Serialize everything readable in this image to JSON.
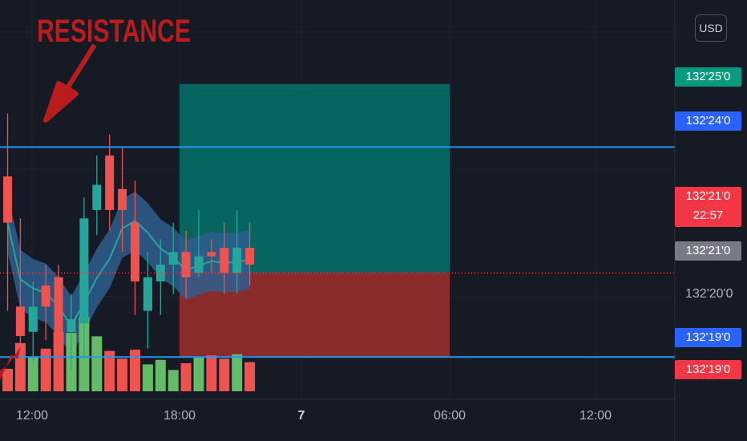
{
  "currency_label": "USD",
  "annotation": {
    "text": "RESISTANCE",
    "color": "#b91c1c"
  },
  "price_scale_ticks": [
    "132'20'0"
  ],
  "price_tags": [
    {
      "text": "132'25'0",
      "bg": "#089981"
    },
    {
      "text": "132'24'0",
      "bg": "#2962ff"
    },
    {
      "text": "132'21'0",
      "bg": "#f23645"
    },
    {
      "text": "22:57",
      "bg": "#f23645"
    },
    {
      "text": "132'21'0",
      "bg": "#787b86"
    },
    {
      "text": "132'19'0",
      "bg": "#2962ff"
    },
    {
      "text": "132'19'0",
      "bg": "#f23645"
    }
  ],
  "time_axis": [
    {
      "label": "12:00",
      "bold": false
    },
    {
      "label": "18:00",
      "bold": false
    },
    {
      "label": "7",
      "bold": true
    },
    {
      "label": "06:00",
      "bold": false
    },
    {
      "label": "12:00",
      "bold": false
    }
  ],
  "colors": {
    "up": "#26a69a",
    "down": "#ef5350",
    "vol_up": "#66bb6a",
    "vol_down": "#ef5350",
    "hline": "#2196f3",
    "band": "#2e5e8e",
    "band_line": "#26a69a",
    "target": "#06665f",
    "stop": "#8a2c2c"
  },
  "chart_data": {
    "type": "candlestick",
    "y_unit": "price (ticks, 32nds)",
    "ylim": [
      132.17,
      132.275
    ],
    "resistance_level": 132.24,
    "support_level": 132.19,
    "position": {
      "entry": 132.21,
      "target": 132.255,
      "stop": 132.19
    },
    "last_price": 132.21,
    "volume_max": 100,
    "candles": [
      {
        "o": 132.233,
        "h": 132.248,
        "l": 132.201,
        "c": 132.222,
        "v": 20
      },
      {
        "o": 132.202,
        "h": 132.223,
        "l": 132.184,
        "c": 132.195,
        "v": 43
      },
      {
        "o": 132.196,
        "h": 132.208,
        "l": 132.189,
        "c": 132.202,
        "v": 31
      },
      {
        "o": 132.207,
        "h": 132.212,
        "l": 132.194,
        "c": 132.202,
        "v": 38
      },
      {
        "o": 132.209,
        "h": 132.212,
        "l": 132.185,
        "c": 132.189,
        "v": 53
      },
      {
        "o": 132.196,
        "h": 132.205,
        "l": 132.187,
        "c": 132.199,
        "v": 52
      },
      {
        "o": 132.198,
        "h": 132.228,
        "l": 132.19,
        "c": 132.223,
        "v": 66
      },
      {
        "o": 132.225,
        "h": 132.238,
        "l": 132.219,
        "c": 132.231,
        "v": 49
      },
      {
        "o": 132.238,
        "h": 132.243,
        "l": 132.22,
        "c": 132.225,
        "v": 36
      },
      {
        "o": 132.23,
        "h": 132.24,
        "l": 132.215,
        "c": 132.225,
        "v": 29
      },
      {
        "o": 132.222,
        "h": 132.232,
        "l": 132.2,
        "c": 132.208,
        "v": 37
      },
      {
        "o": 132.201,
        "h": 132.215,
        "l": 132.192,
        "c": 132.209,
        "v": 24
      },
      {
        "o": 132.208,
        "h": 132.218,
        "l": 132.2,
        "c": 132.212,
        "v": 28
      },
      {
        "o": 132.212,
        "h": 132.222,
        "l": 132.205,
        "c": 132.215,
        "v": 19
      },
      {
        "o": 132.215,
        "h": 132.22,
        "l": 132.204,
        "c": 132.209,
        "v": 25
      },
      {
        "o": 132.21,
        "h": 132.225,
        "l": 132.209,
        "c": 132.214,
        "v": 30
      },
      {
        "o": 132.215,
        "h": 132.218,
        "l": 132.21,
        "c": 132.214,
        "v": 32
      },
      {
        "o": 132.216,
        "h": 132.222,
        "l": 132.205,
        "c": 132.21,
        "v": 29
      },
      {
        "o": 132.21,
        "h": 132.225,
        "l": 132.205,
        "c": 132.216,
        "v": 33
      },
      {
        "o": 132.216,
        "h": 132.222,
        "l": 132.207,
        "c": 132.212,
        "v": 26
      }
    ]
  }
}
